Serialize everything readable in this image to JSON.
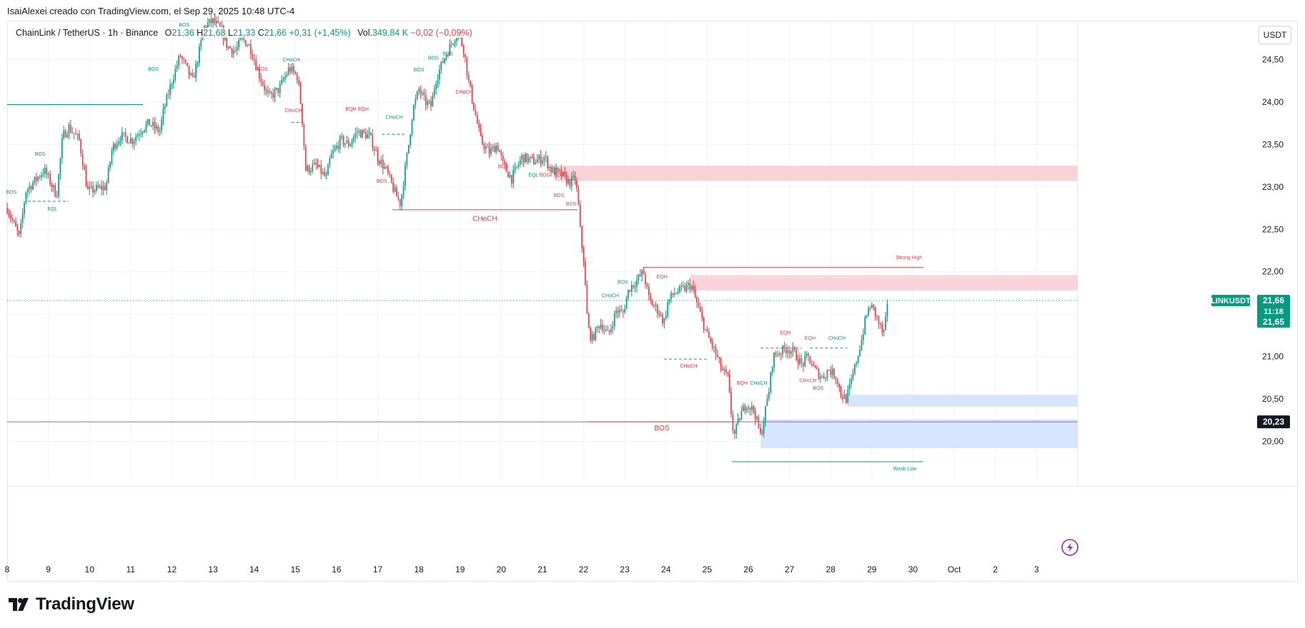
{
  "caption": "IsaiAlexei creado con TradingView.com, el Sep 29, 2025 10:48 UTC-4",
  "legend": {
    "symbol": "ChainLink / TetherUS · 1h · Binance",
    "o_label": "O",
    "o_value": "21,36",
    "h_label": "H",
    "h_value": "21,68",
    "l_label": "L",
    "l_value": "21,33",
    "c_label": "C",
    "c_value": "21,66",
    "change": "+0,31 (+1,45%)",
    "vol_label": "Vol.",
    "vol_value": "349,84 K",
    "vol_change": "−0,02 (−0,09%)"
  },
  "currency_button": "USDT",
  "brand": "TradingView",
  "colors": {
    "up": "#089981",
    "down": "#f23645",
    "supply": "#f7cbd0",
    "demand": "#cfe0fd",
    "grid": "#f0f3fa"
  },
  "chart_data": {
    "type": "candlestick",
    "symbol": "LINKUSDT",
    "interval": "1h",
    "x_ticks": [
      "8",
      "9",
      "10",
      "11",
      "12",
      "13",
      "14",
      "15",
      "16",
      "17",
      "18",
      "19",
      "20",
      "21",
      "22",
      "23",
      "24",
      "25",
      "26",
      "27",
      "28",
      "29",
      "30",
      "Oct",
      "2",
      "3"
    ],
    "x_range_days": [
      8,
      34.0
    ],
    "y_ticks": [
      "24,50",
      "24,00",
      "23,50",
      "23,00",
      "22,50",
      "22,00",
      "21,50",
      "21,00",
      "20,50",
      "20,00"
    ],
    "y_range": [
      19.55,
      24.95
    ],
    "price_path": [
      [
        8.0,
        22.75
      ],
      [
        8.3,
        22.4
      ],
      [
        8.45,
        22.95
      ],
      [
        8.9,
        23.2
      ],
      [
        9.2,
        22.9
      ],
      [
        9.35,
        23.6
      ],
      [
        9.5,
        23.7
      ],
      [
        9.75,
        23.55
      ],
      [
        9.95,
        22.95
      ],
      [
        10.4,
        23.0
      ],
      [
        10.55,
        23.45
      ],
      [
        10.75,
        23.6
      ],
      [
        11.05,
        23.55
      ],
      [
        11.3,
        23.7
      ],
      [
        11.45,
        23.75
      ],
      [
        11.7,
        23.65
      ],
      [
        11.8,
        23.9
      ],
      [
        12.0,
        24.25
      ],
      [
        12.2,
        24.55
      ],
      [
        12.35,
        24.4
      ],
      [
        12.5,
        24.25
      ],
      [
        12.6,
        24.45
      ],
      [
        12.8,
        24.9
      ],
      [
        13.0,
        24.95
      ],
      [
        13.2,
        24.85
      ],
      [
        13.35,
        24.65
      ],
      [
        13.55,
        24.6
      ],
      [
        13.7,
        24.75
      ],
      [
        13.9,
        24.65
      ],
      [
        14.1,
        24.35
      ],
      [
        14.35,
        24.05
      ],
      [
        14.6,
        24.15
      ],
      [
        14.85,
        24.4
      ],
      [
        15.05,
        24.3
      ],
      [
        15.15,
        23.9
      ],
      [
        15.25,
        23.2
      ],
      [
        15.5,
        23.25
      ],
      [
        15.75,
        23.1
      ],
      [
        15.85,
        23.35
      ],
      [
        16.1,
        23.55
      ],
      [
        16.3,
        23.5
      ],
      [
        16.5,
        23.65
      ],
      [
        16.8,
        23.6
      ],
      [
        17.0,
        23.35
      ],
      [
        17.2,
        23.2
      ],
      [
        17.4,
        22.95
      ],
      [
        17.55,
        22.8
      ],
      [
        17.75,
        23.5
      ],
      [
        17.85,
        23.9
      ],
      [
        18.0,
        24.15
      ],
      [
        18.15,
        24.0
      ],
      [
        18.3,
        23.95
      ],
      [
        18.4,
        24.25
      ],
      [
        18.6,
        24.5
      ],
      [
        18.8,
        24.7
      ],
      [
        18.9,
        24.8
      ],
      [
        19.0,
        24.75
      ],
      [
        19.1,
        24.6
      ],
      [
        19.2,
        24.25
      ],
      [
        19.35,
        23.9
      ],
      [
        19.5,
        23.55
      ],
      [
        19.7,
        23.4
      ],
      [
        19.9,
        23.5
      ],
      [
        20.05,
        23.25
      ],
      [
        20.25,
        23.1
      ],
      [
        20.5,
        23.35
      ],
      [
        20.8,
        23.3
      ],
      [
        21.05,
        23.35
      ],
      [
        21.2,
        23.2
      ],
      [
        21.45,
        23.15
      ],
      [
        21.65,
        23.05
      ],
      [
        21.8,
        23.1
      ],
      [
        21.87,
        22.8
      ],
      [
        21.93,
        22.4
      ],
      [
        22.0,
        22.15
      ],
      [
        22.05,
        21.75
      ],
      [
        22.1,
        21.35
      ],
      [
        22.2,
        21.2
      ],
      [
        22.4,
        21.4
      ],
      [
        22.6,
        21.25
      ],
      [
        22.8,
        21.55
      ],
      [
        22.95,
        21.5
      ],
      [
        23.1,
        21.8
      ],
      [
        23.3,
        21.9
      ],
      [
        23.45,
        22.0
      ],
      [
        23.6,
        21.65
      ],
      [
        23.8,
        21.55
      ],
      [
        23.95,
        21.4
      ],
      [
        24.05,
        21.65
      ],
      [
        24.2,
        21.75
      ],
      [
        24.45,
        21.8
      ],
      [
        24.6,
        21.85
      ],
      [
        24.8,
        21.55
      ],
      [
        25.0,
        21.25
      ],
      [
        25.15,
        21.1
      ],
      [
        25.35,
        20.85
      ],
      [
        25.5,
        20.75
      ],
      [
        25.58,
        20.35
      ],
      [
        25.65,
        20.05
      ],
      [
        25.8,
        20.3
      ],
      [
        25.95,
        20.45
      ],
      [
        26.15,
        20.35
      ],
      [
        26.3,
        20.05
      ],
      [
        26.5,
        20.6
      ],
      [
        26.6,
        21.0
      ],
      [
        26.75,
        21.05
      ],
      [
        26.95,
        21.1
      ],
      [
        27.1,
        21.05
      ],
      [
        27.3,
        20.9
      ],
      [
        27.45,
        21.0
      ],
      [
        27.6,
        20.85
      ],
      [
        27.8,
        20.75
      ],
      [
        27.95,
        20.85
      ],
      [
        28.15,
        20.75
      ],
      [
        28.25,
        20.55
      ],
      [
        28.38,
        20.5
      ],
      [
        28.5,
        20.7
      ],
      [
        28.65,
        21.0
      ],
      [
        28.75,
        21.2
      ],
      [
        28.85,
        21.45
      ],
      [
        28.95,
        21.6
      ],
      [
        29.05,
        21.55
      ],
      [
        29.2,
        21.35
      ],
      [
        29.28,
        21.25
      ],
      [
        29.33,
        21.4
      ],
      [
        29.4,
        21.66
      ]
    ],
    "last_price": {
      "symbol_label": "LINKUSDT",
      "price": "21,66",
      "countdown": "11:18",
      "bid": "21,65",
      "value": 21.66
    },
    "crosshair_price": {
      "label": "20,23",
      "value": 20.23
    },
    "zones": [
      {
        "kind": "supply",
        "x0": 21.3,
        "x1": 34.0,
        "y0": 23.07,
        "y1": 23.25
      },
      {
        "kind": "supply",
        "x0": 24.6,
        "x1": 34.0,
        "y0": 21.78,
        "y1": 21.96
      },
      {
        "kind": "demand",
        "x0": 28.4,
        "x1": 34.0,
        "y0": 20.41,
        "y1": 20.55
      },
      {
        "kind": "demand",
        "x0": 26.3,
        "x1": 34.0,
        "y0": 19.92,
        "y1": 20.26
      }
    ],
    "structure_lines": [
      {
        "x0": 8.0,
        "x1": 11.3,
        "y": 23.97,
        "color": "up",
        "dash": false
      },
      {
        "x0": 17.35,
        "x1": 21.85,
        "y": 22.73,
        "color": "down",
        "dash": false
      },
      {
        "x0": 22.08,
        "x1": 25.58,
        "y": 20.23,
        "color": "down",
        "dash": false
      },
      {
        "x0": 23.45,
        "x1": 30.25,
        "y": 22.05,
        "color": "down",
        "dash": false
      },
      {
        "x0": 25.6,
        "x1": 30.25,
        "y": 19.76,
        "color": "up",
        "dash": false
      },
      {
        "x0": 8.5,
        "x1": 9.5,
        "y": 22.83,
        "color": "up",
        "dash": true
      },
      {
        "x0": 12.0,
        "x1": 12.5,
        "y": 24.82,
        "color": "up",
        "dash": true
      },
      {
        "x0": 14.9,
        "x1": 15.2,
        "y": 23.76,
        "color": "down",
        "dash": true
      },
      {
        "x0": 17.1,
        "x1": 17.65,
        "y": 23.62,
        "color": "up",
        "dash": true
      },
      {
        "x0": 23.95,
        "x1": 25.0,
        "y": 20.97,
        "color": "up",
        "dash": true
      },
      {
        "x0": 26.3,
        "x1": 27.3,
        "y": 21.1,
        "color": "down",
        "dash": true
      },
      {
        "x0": 27.5,
        "x1": 28.4,
        "y": 21.1,
        "color": "up",
        "dash": true
      }
    ],
    "annotations": [
      {
        "text": "BOS",
        "x": 8.1,
        "y": 22.92,
        "color": "up"
      },
      {
        "text": "BOS",
        "x": 8.8,
        "y": 23.37,
        "color": "up"
      },
      {
        "text": "EQL",
        "x": 9.1,
        "y": 22.72,
        "color": "up"
      },
      {
        "text": "BOS",
        "x": 11.55,
        "y": 24.37,
        "color": "up"
      },
      {
        "text": "BOS",
        "x": 12.3,
        "y": 24.89,
        "color": "up"
      },
      {
        "text": "CHoCH",
        "x": 13.2,
        "y": 24.76,
        "color": "down"
      },
      {
        "text": "BOS",
        "x": 14.2,
        "y": 24.37,
        "color": "down"
      },
      {
        "text": "CHoCH",
        "x": 14.9,
        "y": 24.48,
        "color": "up"
      },
      {
        "text": "CHoCH",
        "x": 14.95,
        "y": 23.88,
        "color": "down"
      },
      {
        "text": "EQH",
        "x": 16.35,
        "y": 23.9,
        "color": "down"
      },
      {
        "text": "EQH",
        "x": 16.65,
        "y": 23.9,
        "color": "down"
      },
      {
        "text": "CHoCH",
        "x": 17.4,
        "y": 23.8,
        "color": "up"
      },
      {
        "text": "BOS",
        "x": 17.1,
        "y": 23.05,
        "color": "down"
      },
      {
        "text": "BOS",
        "x": 18.0,
        "y": 24.36,
        "color": "up"
      },
      {
        "text": "BOS",
        "x": 18.35,
        "y": 24.5,
        "color": "up"
      },
      {
        "text": "BOS",
        "x": 18.7,
        "y": 24.55,
        "color": "up"
      },
      {
        "text": "CHoCH",
        "x": 19.1,
        "y": 24.1,
        "color": "down"
      },
      {
        "text": "BOS",
        "x": 20.05,
        "y": 23.22,
        "color": "down"
      },
      {
        "text": "EQL",
        "x": 20.78,
        "y": 23.12,
        "color": "up"
      },
      {
        "text": "BOS",
        "x": 21.05,
        "y": 23.12,
        "color": "down"
      },
      {
        "text": "BOS",
        "x": 21.4,
        "y": 23.12,
        "color": "down"
      },
      {
        "text": "BOS",
        "x": 21.4,
        "y": 22.88,
        "color": "down"
      },
      {
        "text": "BOS",
        "x": 21.7,
        "y": 22.78,
        "color": "down"
      },
      {
        "text": "CHoCH",
        "x": 19.6,
        "y": 22.6,
        "color": "down",
        "big": true
      },
      {
        "text": "CHoCH",
        "x": 22.65,
        "y": 21.7,
        "color": "up"
      },
      {
        "text": "BOS",
        "x": 22.95,
        "y": 21.86,
        "color": "up"
      },
      {
        "text": "EQH",
        "x": 23.9,
        "y": 21.92,
        "color": "down"
      },
      {
        "text": "CHoCH",
        "x": 24.55,
        "y": 20.87,
        "color": "down"
      },
      {
        "text": "EQH",
        "x": 25.85,
        "y": 20.67,
        "color": "down"
      },
      {
        "text": "CHoCH",
        "x": 26.25,
        "y": 20.67,
        "color": "up"
      },
      {
        "text": "EQH",
        "x": 26.9,
        "y": 21.26,
        "color": "down"
      },
      {
        "text": "EQH",
        "x": 27.5,
        "y": 21.2,
        "color": "down"
      },
      {
        "text": "CHoCH",
        "x": 28.15,
        "y": 21.2,
        "color": "up"
      },
      {
        "text": "CHoCH",
        "x": 27.45,
        "y": 20.7,
        "color": "down"
      },
      {
        "text": "BOS",
        "x": 27.7,
        "y": 20.61,
        "color": "down"
      },
      {
        "text": "BOS",
        "x": 23.9,
        "y": 20.13,
        "color": "down",
        "big": true
      },
      {
        "text": "Strong High",
        "x": 29.9,
        "y": 22.15,
        "color": "down"
      },
      {
        "text": "Weak Low",
        "x": 29.8,
        "y": 19.66,
        "color": "up"
      }
    ]
  }
}
